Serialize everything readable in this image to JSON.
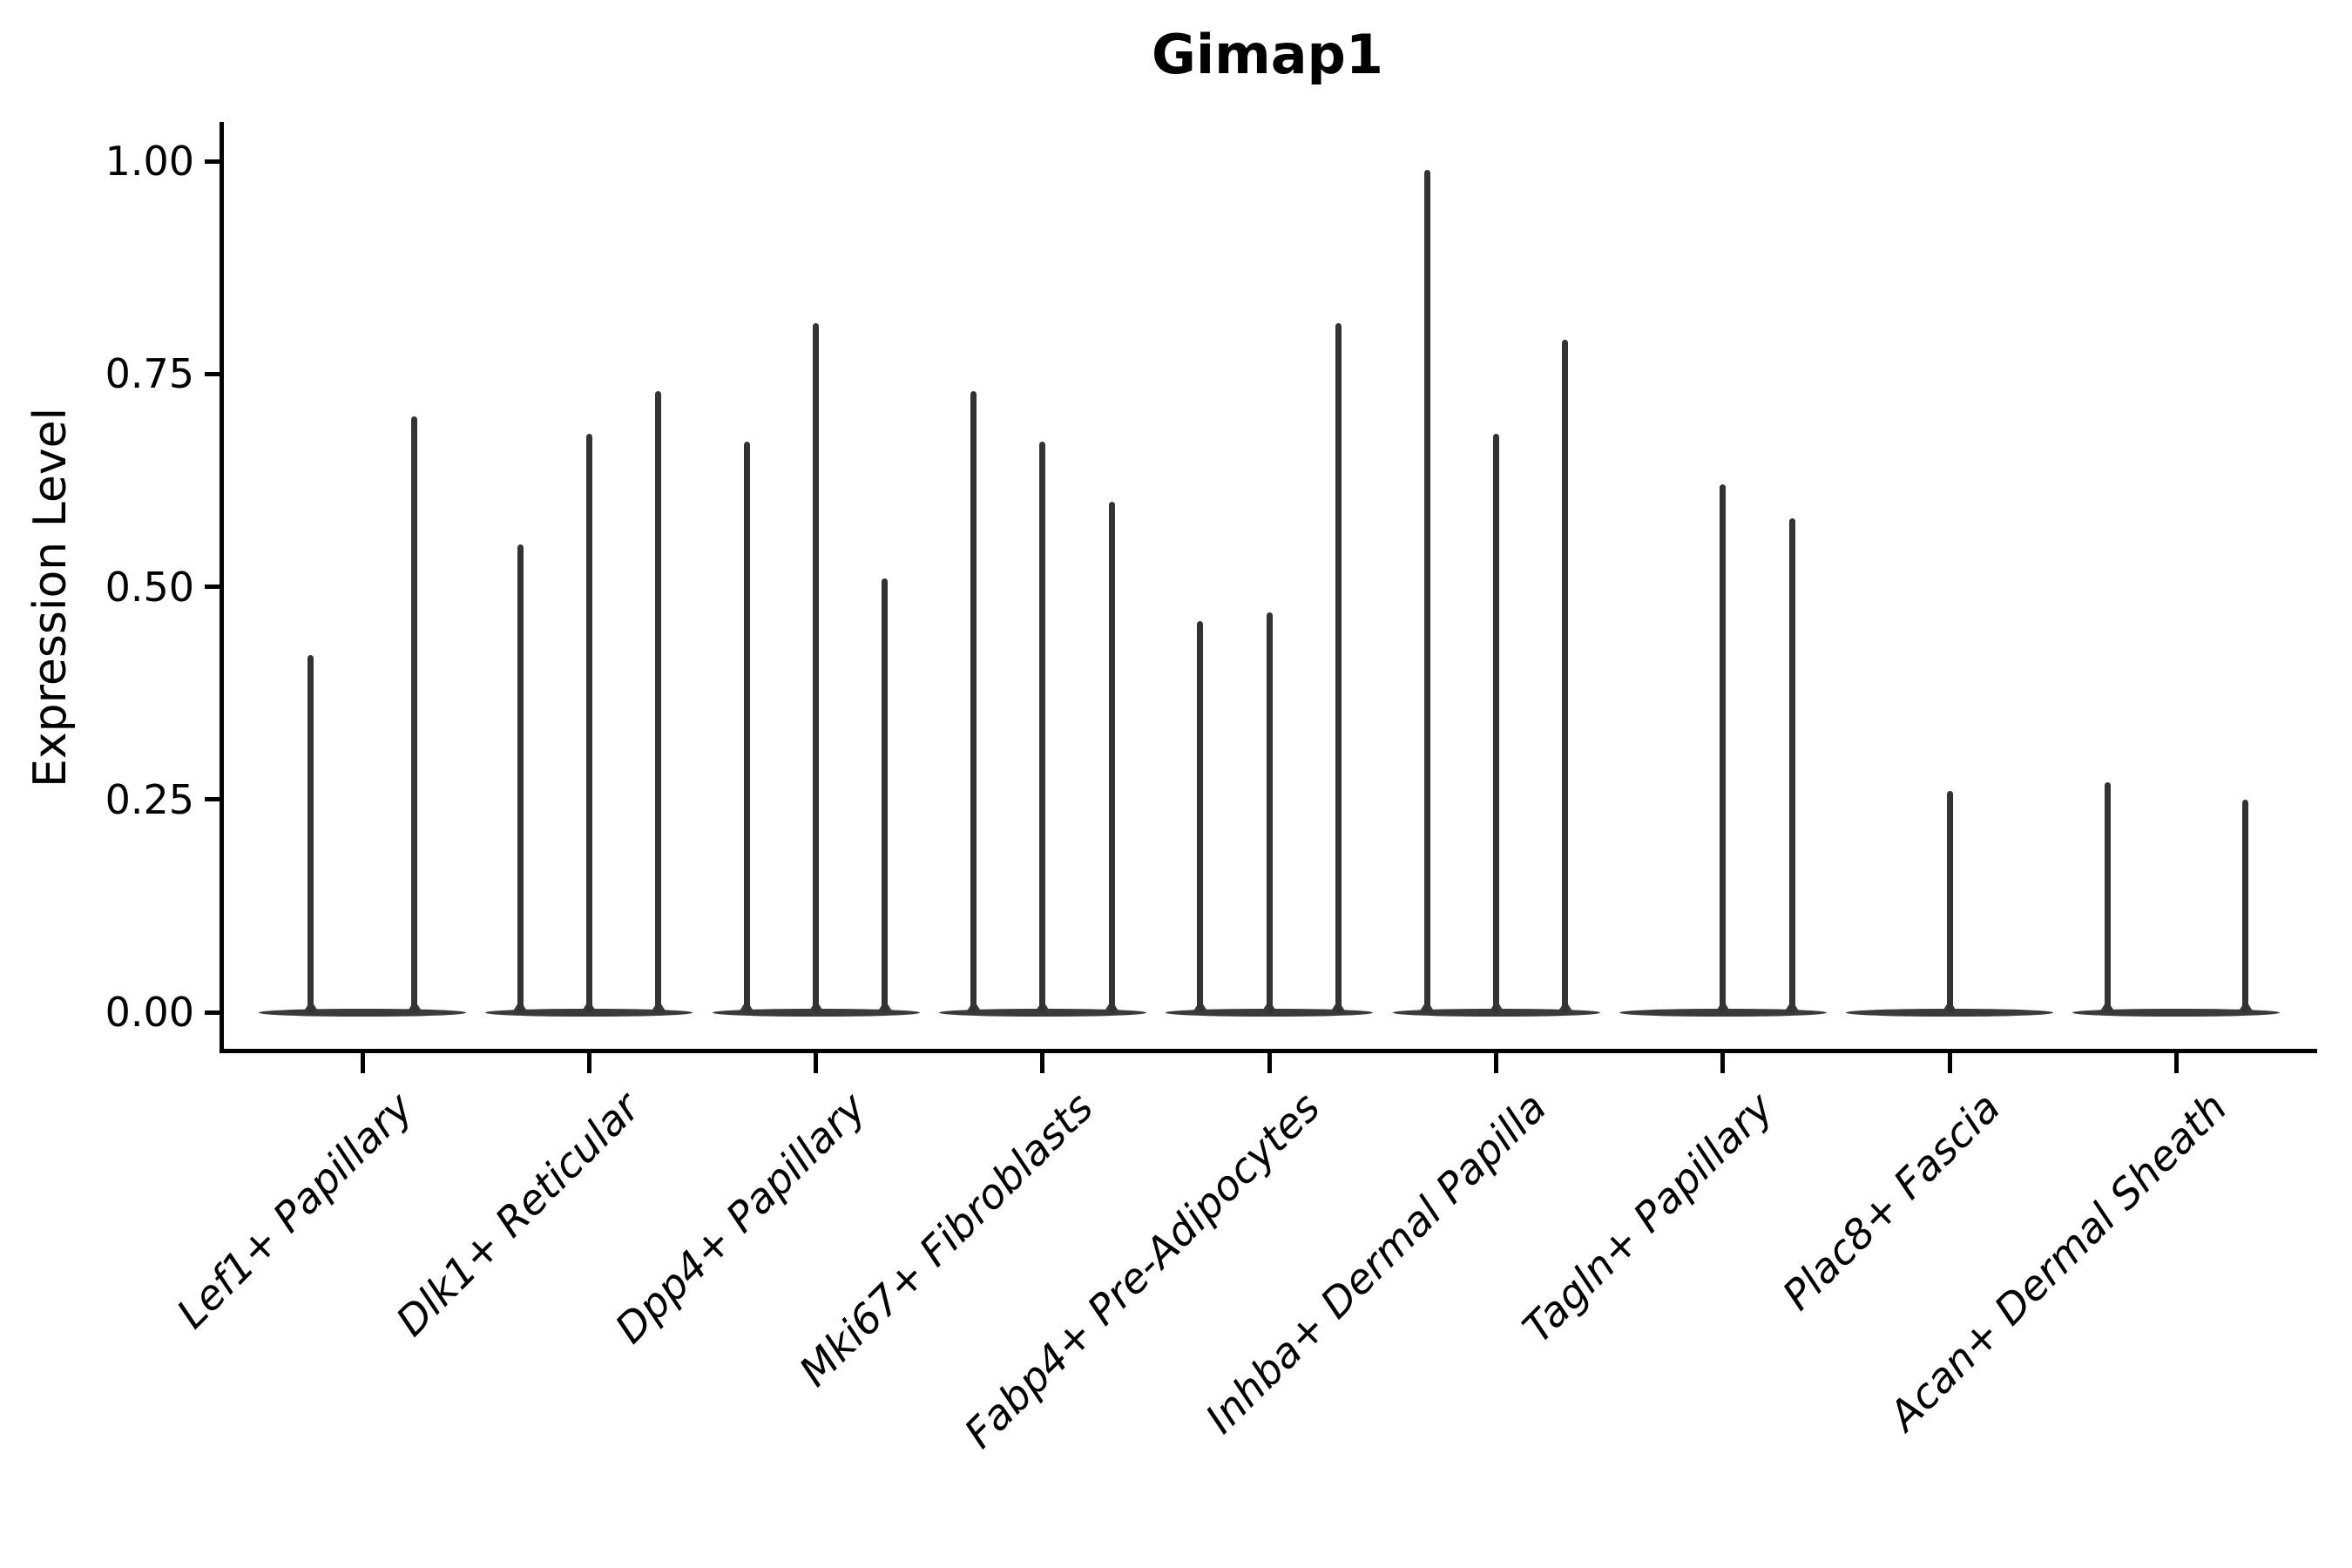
{
  "chart_data": {
    "type": "violin",
    "title": "Gimap1",
    "ylabel": "Expression Level",
    "xlabel": "",
    "ylim": [
      0,
      1.05
    ],
    "ytick_labels": [
      "0.00",
      "0.25",
      "0.50",
      "0.75",
      "1.00"
    ],
    "grid": false,
    "legend": "none",
    "background": "#ffffff",
    "ink_color": "#333333",
    "axis_color": "#000000",
    "categories": [
      "Lef1+ Papillary",
      "Dlk1+ Reticular",
      "Dpp4+ Papillary",
      "Mki67+ Fibroblasts",
      "Fabp4+ Pre-Adipocytes",
      "Inhba+ Dermal Papilla",
      "Tagln+ Papillary",
      "Plac8+ Fascia",
      "Acan+ Dermal Sheath"
    ],
    "groups": [
      {
        "label": "Lef1+ Papillary",
        "violins": [
          {
            "frac": 0.25,
            "peak": 0.42
          },
          {
            "frac": 0.75,
            "peak": 0.7
          }
        ]
      },
      {
        "label": "Dlk1+ Reticular",
        "violins": [
          {
            "frac": 0.167,
            "peak": 0.55
          },
          {
            "frac": 0.5,
            "peak": 0.68
          },
          {
            "frac": 0.833,
            "peak": 0.73
          }
        ]
      },
      {
        "label": "Dpp4+ Papillary",
        "violins": [
          {
            "frac": 0.167,
            "peak": 0.67
          },
          {
            "frac": 0.5,
            "peak": 0.81
          },
          {
            "frac": 0.833,
            "peak": 0.51
          }
        ]
      },
      {
        "label": "Mki67+ Fibroblasts",
        "violins": [
          {
            "frac": 0.167,
            "peak": 0.73
          },
          {
            "frac": 0.5,
            "peak": 0.67
          },
          {
            "frac": 0.833,
            "peak": 0.6
          }
        ]
      },
      {
        "label": "Fabp4+ Pre-Adipocytes",
        "violins": [
          {
            "frac": 0.167,
            "peak": 0.46
          },
          {
            "frac": 0.5,
            "peak": 0.47
          },
          {
            "frac": 0.833,
            "peak": 0.81
          }
        ]
      },
      {
        "label": "Inhba+ Dermal Papilla",
        "violins": [
          {
            "frac": 0.167,
            "peak": 0.99
          },
          {
            "frac": 0.5,
            "peak": 0.68
          },
          {
            "frac": 0.833,
            "peak": 0.79
          }
        ]
      },
      {
        "label": "Tagln+ Papillary",
        "violins": [
          {
            "frac": 0.5,
            "peak": 0.62
          },
          {
            "frac": 0.833,
            "peak": 0.58
          }
        ]
      },
      {
        "label": "Plac8+ Fascia",
        "violins": [
          {
            "frac": 0.5,
            "peak": 0.26
          }
        ]
      },
      {
        "label": "Acan+ Dermal Sheath",
        "violins": [
          {
            "frac": 0.167,
            "peak": 0.27
          },
          {
            "frac": 0.833,
            "peak": 0.25
          }
        ]
      }
    ]
  }
}
